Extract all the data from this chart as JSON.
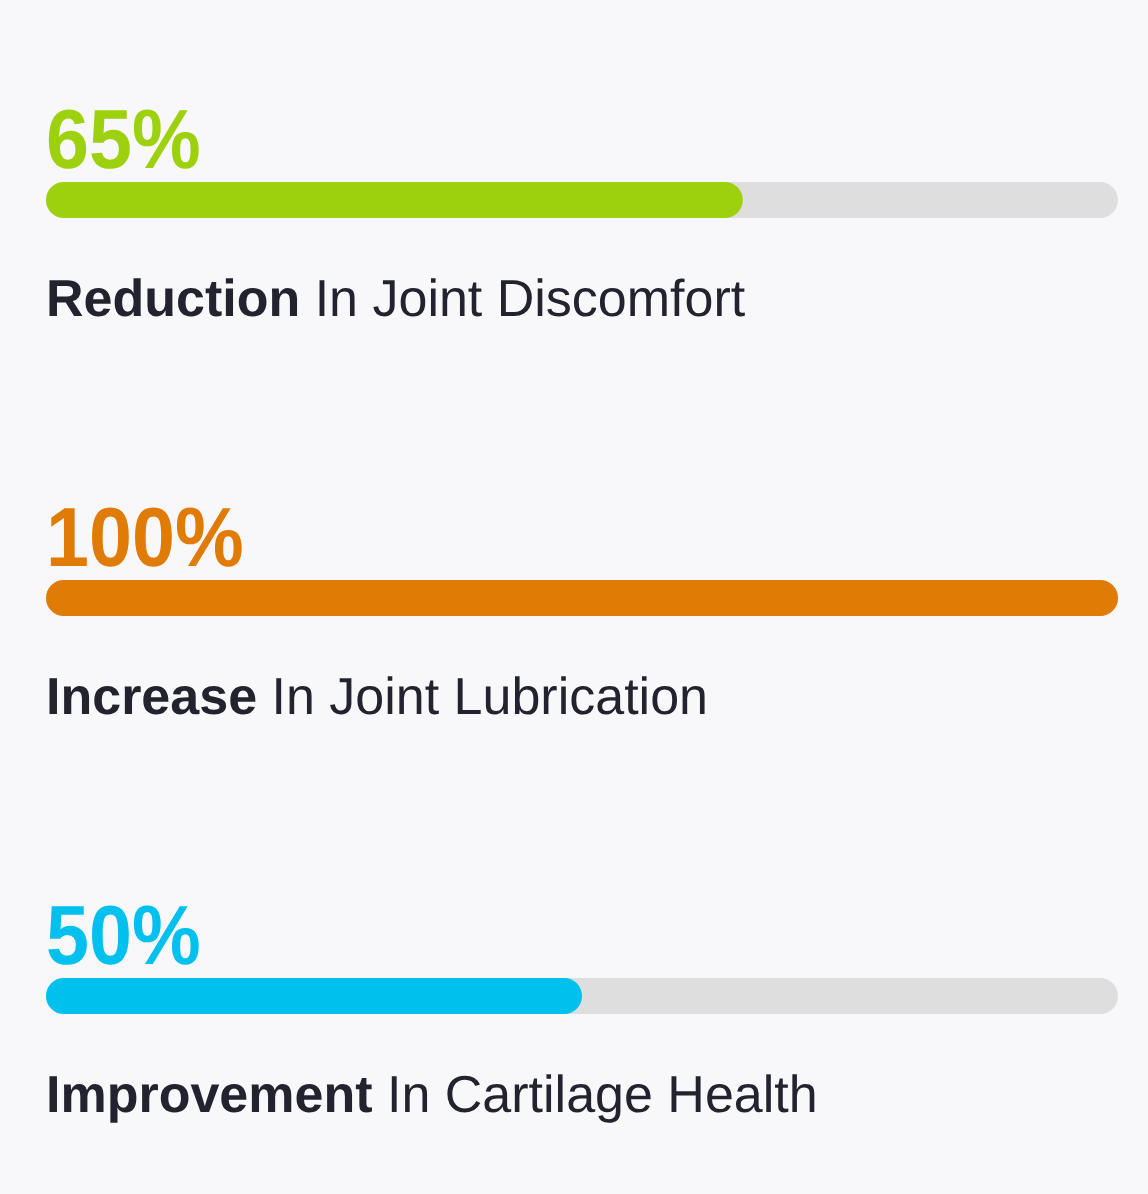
{
  "chart_data": {
    "type": "bar",
    "orientation": "horizontal",
    "categories": [
      "Reduction In Joint Discomfort",
      "Increase In Joint Lubrication",
      "Improvement In Cartilage Health"
    ],
    "values": [
      65,
      100,
      50
    ],
    "colors": [
      "#9ed10d",
      "#e07b06",
      "#00c0ee"
    ],
    "value_labels": [
      "65%",
      "100%",
      "50%"
    ]
  }
}
